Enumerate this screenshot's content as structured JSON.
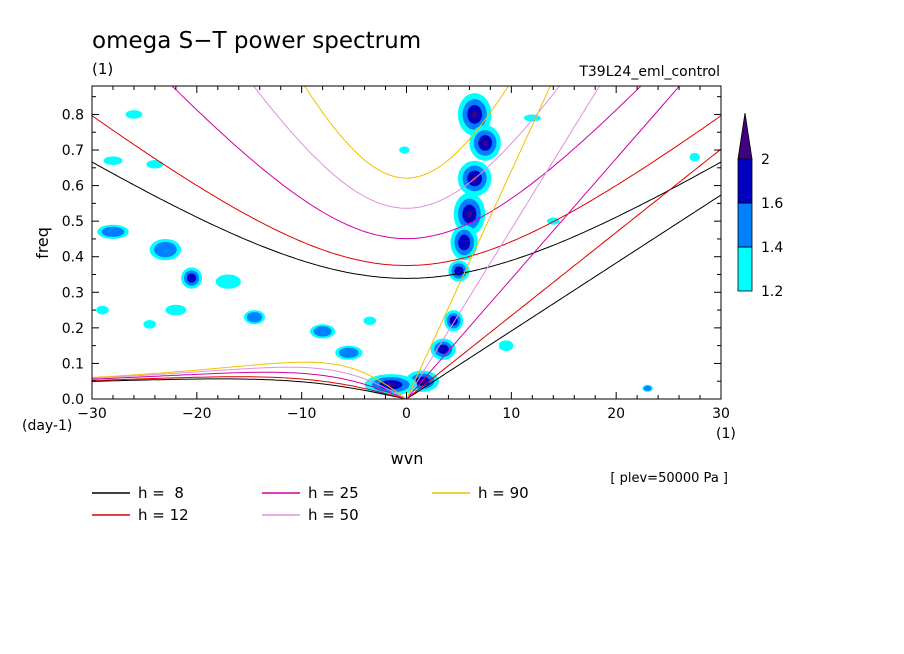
{
  "chart_data": {
    "type": "contour",
    "title": "omega S−T power spectrum",
    "subtitle_left": "(1)",
    "subtitle_right": "T39L24_eml_control",
    "xlabel": "wvn",
    "ylabel": "freq",
    "x_unit": "(1)",
    "y_unit": "(day-1)",
    "xlim": [
      -30,
      30
    ],
    "ylim": [
      0,
      0.88
    ],
    "x_ticks": [
      -30,
      -20,
      -10,
      0,
      10,
      20,
      30
    ],
    "y_ticks": [
      0.0,
      0.1,
      0.2,
      0.3,
      0.4,
      0.5,
      0.6,
      0.7,
      0.8
    ],
    "tick_labels_x": [
      "−30",
      "−20",
      "−10",
      "0",
      "10",
      "20",
      "30"
    ],
    "tick_labels_y": [
      "0.0",
      "0.1",
      "0.2",
      "0.3",
      "0.4",
      "0.5",
      "0.6",
      "0.7",
      "0.8"
    ],
    "note": "[ plev=50000 Pa ]",
    "colorbar": {
      "levels": [
        "1.2",
        "1.4",
        "1.6",
        "2"
      ],
      "colors": [
        "#00ffff",
        "#0080ff",
        "#0000c0",
        "#400080"
      ]
    },
    "dispersion_curves": [
      {
        "label": "h =  8",
        "h": 8,
        "color": "#000000"
      },
      {
        "label": "h = 12",
        "h": 12,
        "color": "#e00000"
      },
      {
        "label": "h = 25",
        "h": 25,
        "color": "#d000a0"
      },
      {
        "label": "h = 50",
        "h": 50,
        "color": "#e090e0"
      },
      {
        "label": "h = 90",
        "h": 90,
        "color": "#f0c000"
      }
    ],
    "power_blobs": [
      {
        "x": 6.5,
        "y": 0.8,
        "rx": 1.6,
        "ry": 0.06,
        "level": 3
      },
      {
        "x": 7.5,
        "y": 0.72,
        "rx": 1.5,
        "ry": 0.05,
        "level": 3
      },
      {
        "x": 6.5,
        "y": 0.62,
        "rx": 1.6,
        "ry": 0.05,
        "level": 3
      },
      {
        "x": 6.0,
        "y": 0.52,
        "rx": 1.5,
        "ry": 0.06,
        "level": 3
      },
      {
        "x": 5.5,
        "y": 0.44,
        "rx": 1.3,
        "ry": 0.05,
        "level": 2
      },
      {
        "x": 5.0,
        "y": 0.36,
        "rx": 1.0,
        "ry": 0.03,
        "level": 2
      },
      {
        "x": 4.5,
        "y": 0.22,
        "rx": 0.9,
        "ry": 0.03,
        "level": 2
      },
      {
        "x": 3.5,
        "y": 0.14,
        "rx": 1.2,
        "ry": 0.03,
        "level": 2
      },
      {
        "x": 1.5,
        "y": 0.05,
        "rx": 1.6,
        "ry": 0.03,
        "level": 3
      },
      {
        "x": -1.5,
        "y": 0.04,
        "rx": 2.5,
        "ry": 0.03,
        "level": 3
      },
      {
        "x": -5.5,
        "y": 0.13,
        "rx": 1.3,
        "ry": 0.02,
        "level": 1
      },
      {
        "x": -8.0,
        "y": 0.19,
        "rx": 1.2,
        "ry": 0.02,
        "level": 1
      },
      {
        "x": -20.5,
        "y": 0.34,
        "rx": 1.0,
        "ry": 0.03,
        "level": 2
      },
      {
        "x": -23.0,
        "y": 0.42,
        "rx": 1.5,
        "ry": 0.03,
        "level": 1
      },
      {
        "x": -28.0,
        "y": 0.47,
        "rx": 1.5,
        "ry": 0.02,
        "level": 1
      },
      {
        "x": -14.5,
        "y": 0.23,
        "rx": 1.0,
        "ry": 0.02,
        "level": 1
      },
      {
        "x": -17.0,
        "y": 0.33,
        "rx": 1.2,
        "ry": 0.02,
        "level": 0
      },
      {
        "x": -22.0,
        "y": 0.25,
        "rx": 1.0,
        "ry": 0.015,
        "level": 0
      },
      {
        "x": -26.0,
        "y": 0.8,
        "rx": 0.8,
        "ry": 0.012,
        "level": 0
      },
      {
        "x": -24.0,
        "y": 0.66,
        "rx": 0.8,
        "ry": 0.012,
        "level": 0
      },
      {
        "x": -28.0,
        "y": 0.67,
        "rx": 0.9,
        "ry": 0.012,
        "level": 0
      },
      {
        "x": -0.2,
        "y": 0.7,
        "rx": 0.5,
        "ry": 0.01,
        "level": 0
      },
      {
        "x": 14.0,
        "y": 0.5,
        "rx": 0.6,
        "ry": 0.01,
        "level": 0
      },
      {
        "x": 23.0,
        "y": 0.03,
        "rx": 0.5,
        "ry": 0.01,
        "level": 1
      },
      {
        "x": 27.5,
        "y": 0.68,
        "rx": 0.5,
        "ry": 0.012,
        "level": 0
      },
      {
        "x": 12.0,
        "y": 0.79,
        "rx": 0.8,
        "ry": 0.01,
        "level": 0
      },
      {
        "x": 9.5,
        "y": 0.15,
        "rx": 0.7,
        "ry": 0.015,
        "level": 0
      },
      {
        "x": -3.5,
        "y": 0.22,
        "rx": 0.6,
        "ry": 0.012,
        "level": 0
      },
      {
        "x": -29.0,
        "y": 0.25,
        "rx": 0.6,
        "ry": 0.012,
        "level": 0
      },
      {
        "x": -24.5,
        "y": 0.21,
        "rx": 0.6,
        "ry": 0.012,
        "level": 0
      }
    ]
  }
}
